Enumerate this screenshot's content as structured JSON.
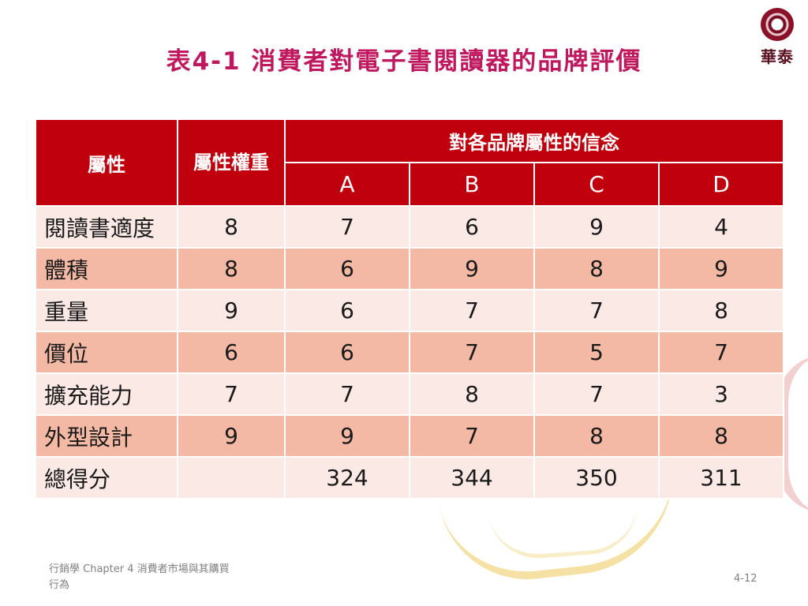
{
  "title": "表4-1 消費者對電子書閱讀器的品牌評價",
  "logo_text": "華泰",
  "table": {
    "header_attribute": "屬性",
    "header_weight": "屬性權重",
    "header_beliefs": "對各品牌屬性的信念",
    "brands": [
      "A",
      "B",
      "C",
      "D"
    ],
    "rows": [
      {
        "label": "閱讀書適度",
        "weight": "8",
        "values": [
          "7",
          "6",
          "9",
          "4"
        ]
      },
      {
        "label": "體積",
        "weight": "8",
        "values": [
          "6",
          "9",
          "8",
          "9"
        ]
      },
      {
        "label": "重量",
        "weight": "9",
        "values": [
          "6",
          "7",
          "7",
          "8"
        ]
      },
      {
        "label": "價位",
        "weight": "6",
        "values": [
          "6",
          "7",
          "5",
          "7"
        ]
      },
      {
        "label": "擴充能力",
        "weight": "7",
        "values": [
          "7",
          "8",
          "7",
          "3"
        ]
      },
      {
        "label": "外型設計",
        "weight": "9",
        "values": [
          "9",
          "7",
          "8",
          "8"
        ]
      },
      {
        "label": "總得分",
        "weight": "",
        "values": [
          "324",
          "344",
          "350",
          "311"
        ]
      }
    ]
  },
  "footer": {
    "course": "行銷學 Chapter 4 消費者市場與其購買行為",
    "page": "4-12"
  }
}
